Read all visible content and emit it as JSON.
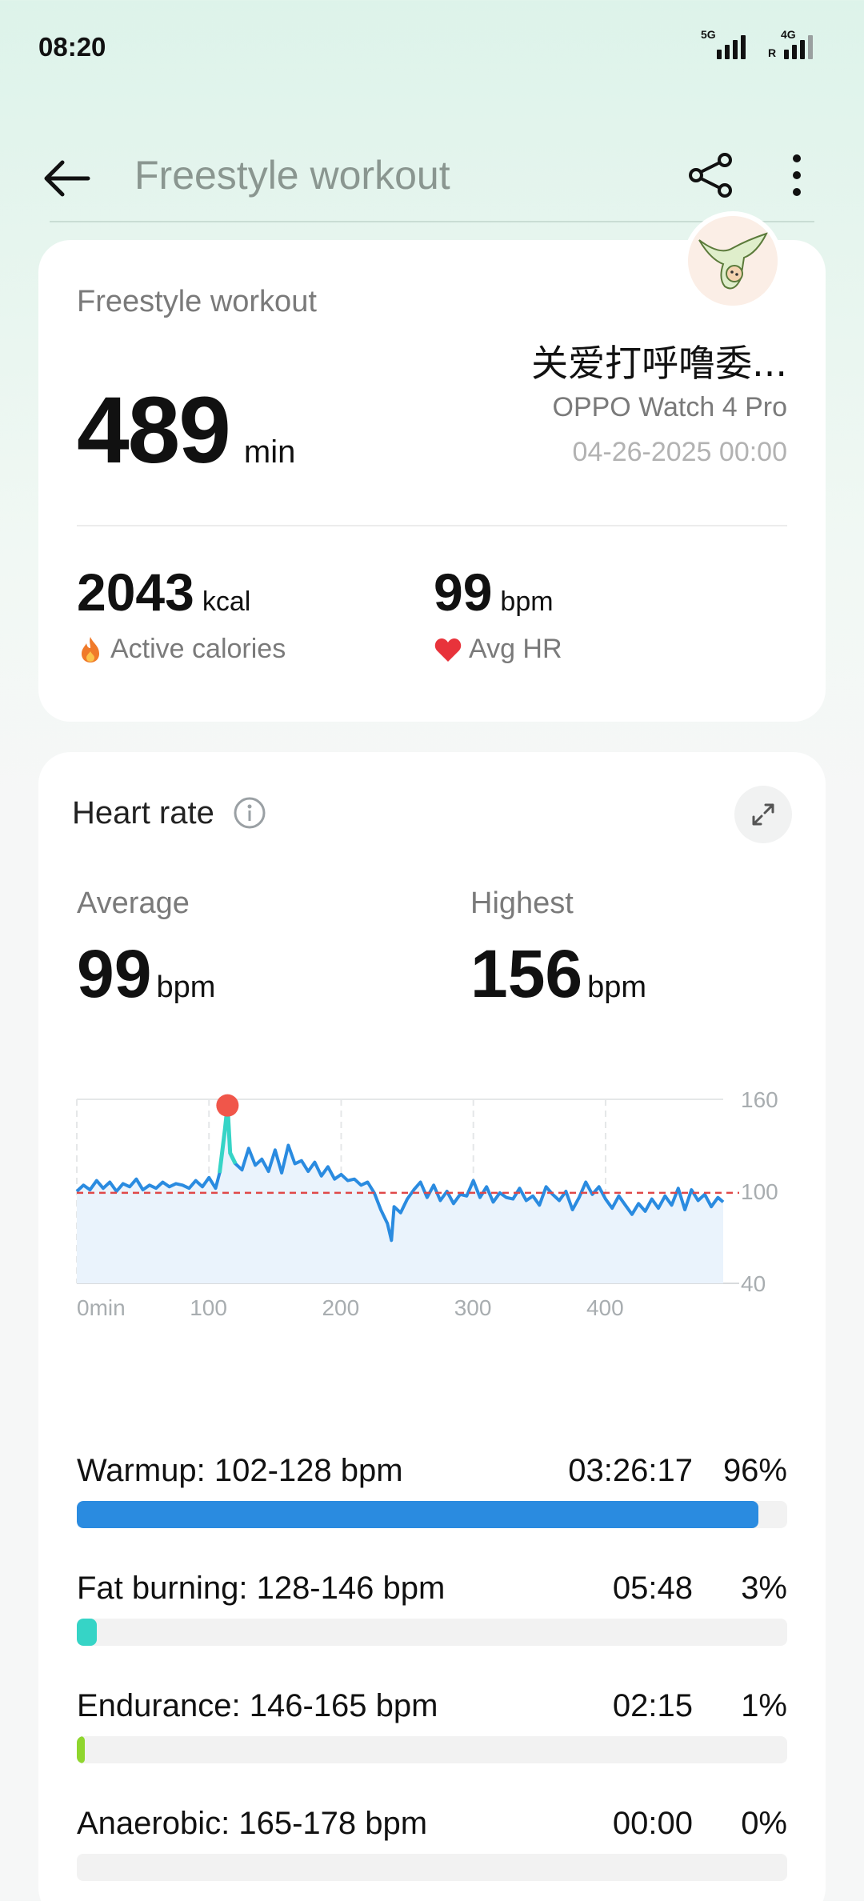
{
  "status_bar": {
    "time": "08:20",
    "signal1_tag": "5G",
    "signal2_tag": "4G",
    "roaming": "R"
  },
  "header": {
    "title": "Freestyle workout"
  },
  "summary": {
    "label": "Freestyle workout",
    "duration_value": "489",
    "duration_unit": "min",
    "user_name": "关爱打呼噜委...",
    "device": "OPPO Watch 4 Pro",
    "date_time": "04-26-2025 00:00",
    "calories_value": "2043",
    "calories_unit": "kcal",
    "calories_label": "Active calories",
    "hr_value": "99",
    "hr_unit": "bpm",
    "hr_label": "Avg HR"
  },
  "heart_rate": {
    "title": "Heart rate",
    "average_label": "Average",
    "average_value": "99",
    "average_unit": "bpm",
    "highest_label": "Highest",
    "highest_value": "156",
    "highest_unit": "bpm"
  },
  "chart_data": {
    "type": "line",
    "x_ticks": [
      "0min",
      "100",
      "200",
      "300",
      "400"
    ],
    "y_ticks": [
      "160",
      "100",
      "40"
    ],
    "ylim": [
      40,
      160
    ],
    "xlim": [
      0,
      489
    ],
    "reference_line": 99,
    "peak": {
      "x": 114,
      "y": 156
    },
    "x": [
      0,
      5,
      10,
      15,
      20,
      25,
      30,
      35,
      40,
      45,
      50,
      55,
      60,
      65,
      70,
      75,
      80,
      85,
      90,
      95,
      100,
      105,
      108,
      112,
      114,
      116,
      120,
      125,
      130,
      135,
      140,
      145,
      150,
      155,
      160,
      165,
      170,
      175,
      180,
      185,
      190,
      195,
      200,
      205,
      210,
      215,
      220,
      225,
      230,
      235,
      238,
      240,
      245,
      250,
      255,
      260,
      265,
      270,
      275,
      280,
      285,
      290,
      295,
      300,
      305,
      310,
      315,
      320,
      325,
      330,
      335,
      340,
      345,
      350,
      355,
      360,
      365,
      370,
      375,
      380,
      385,
      390,
      395,
      400,
      405,
      410,
      415,
      420,
      425,
      430,
      435,
      440,
      445,
      450,
      455,
      460,
      465,
      470,
      475,
      480,
      485,
      489
    ],
    "y": [
      100,
      104,
      101,
      107,
      102,
      106,
      100,
      105,
      103,
      108,
      101,
      104,
      102,
      106,
      103,
      105,
      104,
      102,
      107,
      103,
      109,
      102,
      112,
      140,
      156,
      125,
      118,
      114,
      128,
      117,
      121,
      113,
      127,
      112,
      130,
      118,
      120,
      113,
      119,
      110,
      116,
      108,
      111,
      107,
      108,
      104,
      106,
      99,
      88,
      79,
      68,
      90,
      86,
      95,
      101,
      106,
      96,
      104,
      94,
      100,
      92,
      98,
      97,
      107,
      96,
      103,
      93,
      99,
      96,
      95,
      102,
      94,
      97,
      91,
      103,
      98,
      94,
      100,
      88,
      96,
      106,
      98,
      103,
      95,
      89,
      97,
      91,
      85,
      92,
      87,
      95,
      89,
      97,
      91,
      102,
      88,
      101,
      94,
      98,
      90,
      96,
      93
    ]
  },
  "zones": [
    {
      "name": "Warmup: 102-128 bpm",
      "time": "03:26:17",
      "pct": "96%",
      "fraction": 0.96,
      "color": "#2a8be0"
    },
    {
      "name": "Fat burning: 128-146 bpm",
      "time": "05:48",
      "pct": "3%",
      "fraction": 0.028,
      "color": "#36d4c6"
    },
    {
      "name": "Endurance: 146-165 bpm",
      "time": "02:15",
      "pct": "1%",
      "fraction": 0.011,
      "color": "#8fd62e"
    },
    {
      "name": "Anaerobic: 165-178 bpm",
      "time": "00:00",
      "pct": "0%",
      "fraction": 0,
      "color": "#f0a030"
    }
  ],
  "colors": {
    "line": "#2a8be0",
    "reference": "#e04848",
    "peak": "#f0564a"
  }
}
